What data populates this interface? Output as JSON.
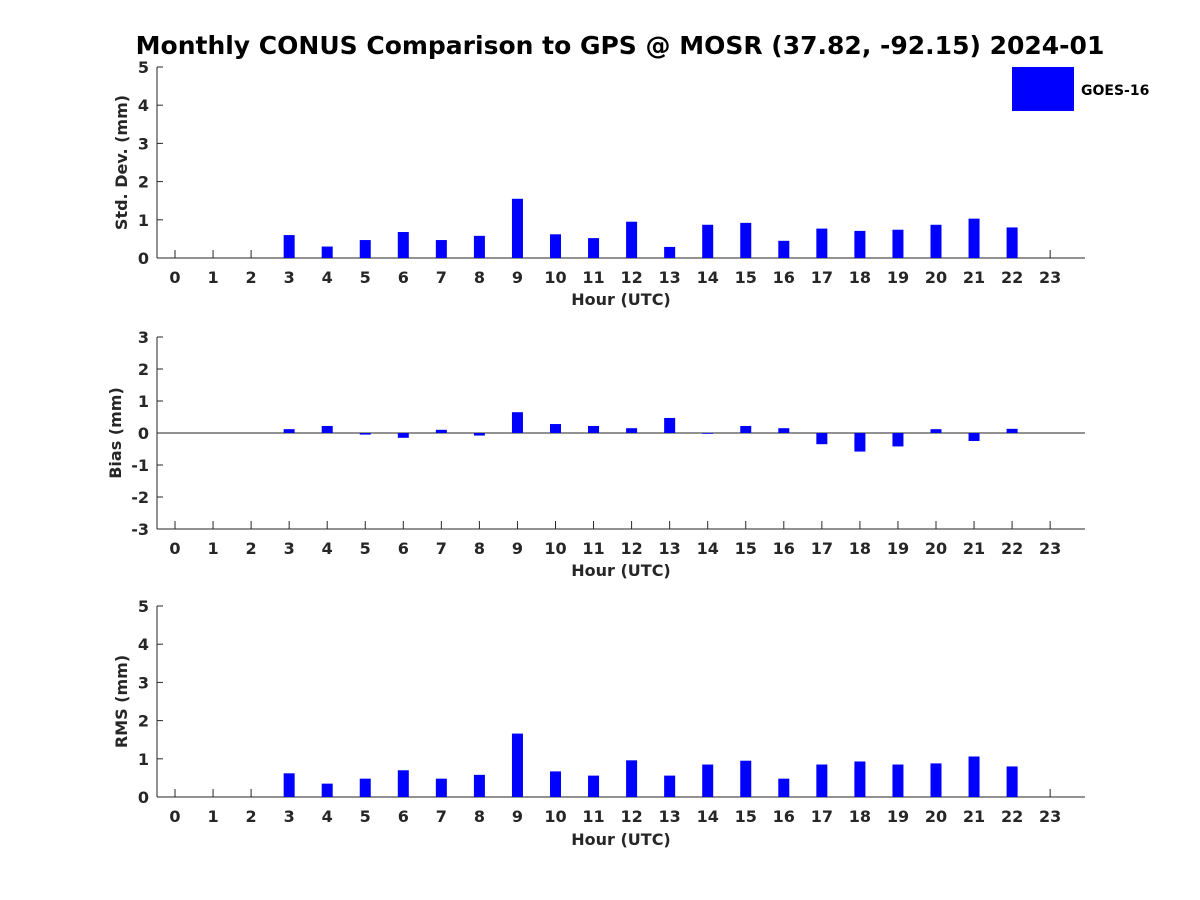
{
  "figure_title": "Monthly CONUS Comparison to GPS @ MOSR (37.82, -92.15) 2024-01",
  "legend": {
    "label": "GOES-16",
    "color": "#0000ff"
  },
  "chart_data": [
    {
      "type": "bar",
      "name": "std-dev",
      "title": "Monthly CONUS Comparison to GPS @ MOSR (37.82, -92.15) 2024-01",
      "xlabel": "Hour (UTC)",
      "ylabel": "Std. Dev. (mm)",
      "ylim": [
        0,
        5
      ],
      "yticks": [
        "0",
        "1",
        "2",
        "3",
        "4",
        "5"
      ],
      "ytick_values": [
        0,
        1,
        2,
        3,
        4,
        5
      ],
      "categories": [
        "0",
        "1",
        "2",
        "3",
        "4",
        "5",
        "6",
        "7",
        "8",
        "9",
        "10",
        "11",
        "12",
        "13",
        "14",
        "15",
        "16",
        "17",
        "18",
        "19",
        "20",
        "21",
        "22",
        "23"
      ],
      "series": [
        {
          "name": "GOES-16",
          "values": [
            null,
            null,
            null,
            0.6,
            0.3,
            0.47,
            0.68,
            0.47,
            0.58,
            1.55,
            0.62,
            0.52,
            0.95,
            0.29,
            0.87,
            0.92,
            0.45,
            0.77,
            0.71,
            0.74,
            0.87,
            1.03,
            0.8,
            null
          ]
        }
      ]
    },
    {
      "type": "bar",
      "name": "bias",
      "xlabel": "Hour (UTC)",
      "ylabel": "Bias (mm)",
      "ylim": [
        -3,
        3
      ],
      "yticks": [
        "-3",
        "-2",
        "-1",
        "0",
        "1",
        "2",
        "3"
      ],
      "ytick_values": [
        -3,
        -2,
        -1,
        0,
        1,
        2,
        3
      ],
      "categories": [
        "0",
        "1",
        "2",
        "3",
        "4",
        "5",
        "6",
        "7",
        "8",
        "9",
        "10",
        "11",
        "12",
        "13",
        "14",
        "15",
        "16",
        "17",
        "18",
        "19",
        "20",
        "21",
        "22",
        "23"
      ],
      "series": [
        {
          "name": "GOES-16",
          "values": [
            null,
            null,
            null,
            0.12,
            0.22,
            -0.05,
            -0.15,
            0.1,
            -0.08,
            0.65,
            0.28,
            0.22,
            0.15,
            0.47,
            -0.02,
            0.22,
            0.15,
            -0.35,
            -0.58,
            -0.42,
            0.12,
            -0.25,
            0.13,
            null
          ]
        }
      ]
    },
    {
      "type": "bar",
      "name": "rms",
      "xlabel": "Hour (UTC)",
      "ylabel": "RMS (mm)",
      "ylim": [
        0,
        5
      ],
      "yticks": [
        "0",
        "1",
        "2",
        "3",
        "4",
        "5"
      ],
      "ytick_values": [
        0,
        1,
        2,
        3,
        4,
        5
      ],
      "categories": [
        "0",
        "1",
        "2",
        "3",
        "4",
        "5",
        "6",
        "7",
        "8",
        "9",
        "10",
        "11",
        "12",
        "13",
        "14",
        "15",
        "16",
        "17",
        "18",
        "19",
        "20",
        "21",
        "22",
        "23"
      ],
      "series": [
        {
          "name": "GOES-16",
          "values": [
            null,
            null,
            null,
            0.62,
            0.35,
            0.48,
            0.7,
            0.48,
            0.58,
            1.66,
            0.67,
            0.56,
            0.96,
            0.56,
            0.85,
            0.95,
            0.48,
            0.85,
            0.93,
            0.85,
            0.88,
            1.06,
            0.8,
            null
          ]
        }
      ]
    }
  ]
}
